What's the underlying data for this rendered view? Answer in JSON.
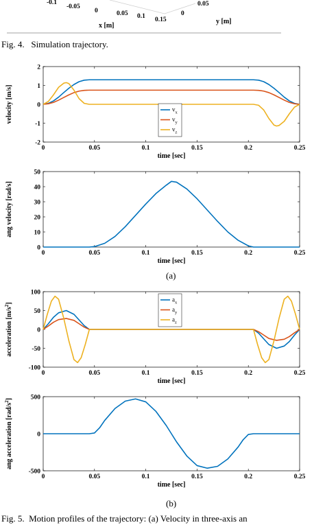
{
  "top_fragment": {
    "ticks_x": [
      "-0.1",
      "-0.05",
      "0",
      "0.05",
      "0.1",
      "0.15"
    ],
    "ticks_y": [
      "0",
      "0.05"
    ],
    "xlabel": "x [m]",
    "ylabel": "y [m]"
  },
  "fig4_caption": "Fig. 4.   Simulation trajectory.",
  "fig5_caption": "Fig. 5.  Motion profiles of the trajectory: (a) Velocity in three-axis an",
  "sublabels": {
    "a": "(a)",
    "b": "(b)"
  },
  "colors": {
    "blue": "#0072BD",
    "orange": "#D95319",
    "yellow": "#EDB120"
  },
  "chart_data": [
    {
      "type": "line",
      "xlabel": "time [sec]",
      "ylabel": "velocity [m/s]",
      "xlim": [
        0,
        0.25
      ],
      "ylim": [
        -2,
        2
      ],
      "xticks": [
        "0",
        "0.05",
        "0.1",
        "0.15",
        "0.2",
        "0.25"
      ],
      "yticks": [
        "2",
        "1",
        "0",
        "-1",
        "-2"
      ],
      "legend": "inside-bottom-center",
      "series": [
        {
          "name": "vx",
          "sym": "v",
          "sub": "x",
          "color": "#0072BD",
          "points": [
            [
              0,
              0
            ],
            [
              0.005,
              0.05
            ],
            [
              0.01,
              0.18
            ],
            [
              0.015,
              0.38
            ],
            [
              0.02,
              0.62
            ],
            [
              0.025,
              0.85
            ],
            [
              0.03,
              1.05
            ],
            [
              0.035,
              1.2
            ],
            [
              0.04,
              1.28
            ],
            [
              0.045,
              1.3
            ],
            [
              0.205,
              1.3
            ],
            [
              0.21,
              1.28
            ],
            [
              0.215,
              1.2
            ],
            [
              0.22,
              1.05
            ],
            [
              0.225,
              0.85
            ],
            [
              0.23,
              0.62
            ],
            [
              0.235,
              0.38
            ],
            [
              0.24,
              0.18
            ],
            [
              0.245,
              0.05
            ],
            [
              0.25,
              0
            ]
          ]
        },
        {
          "name": "vy",
          "sym": "v",
          "sub": "y",
          "color": "#D95319",
          "points": [
            [
              0,
              0
            ],
            [
              0.005,
              0.03
            ],
            [
              0.01,
              0.1
            ],
            [
              0.015,
              0.22
            ],
            [
              0.02,
              0.36
            ],
            [
              0.025,
              0.5
            ],
            [
              0.03,
              0.62
            ],
            [
              0.035,
              0.7
            ],
            [
              0.04,
              0.74
            ],
            [
              0.045,
              0.75
            ],
            [
              0.205,
              0.75
            ],
            [
              0.21,
              0.74
            ],
            [
              0.215,
              0.7
            ],
            [
              0.22,
              0.62
            ],
            [
              0.225,
              0.5
            ],
            [
              0.23,
              0.36
            ],
            [
              0.235,
              0.22
            ],
            [
              0.24,
              0.1
            ],
            [
              0.245,
              0.03
            ],
            [
              0.25,
              0
            ]
          ]
        },
        {
          "name": "vz",
          "sym": "v",
          "sub": "z",
          "color": "#EDB120",
          "points": [
            [
              0,
              0
            ],
            [
              0.005,
              0.15
            ],
            [
              0.01,
              0.5
            ],
            [
              0.015,
              0.9
            ],
            [
              0.02,
              1.12
            ],
            [
              0.0225,
              1.15
            ],
            [
              0.025,
              1.1
            ],
            [
              0.03,
              0.75
            ],
            [
              0.035,
              0.3
            ],
            [
              0.04,
              0.05
            ],
            [
              0.045,
              0
            ],
            [
              0.205,
              0
            ],
            [
              0.21,
              -0.05
            ],
            [
              0.215,
              -0.3
            ],
            [
              0.22,
              -0.75
            ],
            [
              0.225,
              -1.1
            ],
            [
              0.2275,
              -1.15
            ],
            [
              0.23,
              -1.12
            ],
            [
              0.235,
              -0.9
            ],
            [
              0.24,
              -0.5
            ],
            [
              0.245,
              -0.15
            ],
            [
              0.25,
              0
            ]
          ]
        }
      ]
    },
    {
      "type": "line",
      "xlabel": "time [sec]",
      "ylabel": "ang velocity [rad/s]",
      "xlim": [
        0,
        0.25
      ],
      "ylim": [
        0,
        50
      ],
      "xticks": [
        "0",
        "0.05",
        "0.1",
        "0.15",
        "0.2",
        "0.25"
      ],
      "yticks": [
        "50",
        "40",
        "30",
        "20",
        "10",
        "0"
      ],
      "series": [
        {
          "color": "#0072BD",
          "points": [
            [
              0,
              0
            ],
            [
              0.045,
              0
            ],
            [
              0.05,
              0.3
            ],
            [
              0.06,
              2.5
            ],
            [
              0.07,
              7
            ],
            [
              0.08,
              13.5
            ],
            [
              0.09,
              21
            ],
            [
              0.1,
              28.5
            ],
            [
              0.11,
              35.5
            ],
            [
              0.12,
              41
            ],
            [
              0.125,
              43.5
            ],
            [
              0.13,
              43
            ],
            [
              0.14,
              38.5
            ],
            [
              0.15,
              32
            ],
            [
              0.16,
              24.5
            ],
            [
              0.17,
              17
            ],
            [
              0.18,
              10
            ],
            [
              0.19,
              4.5
            ],
            [
              0.2,
              0.8
            ],
            [
              0.205,
              0
            ],
            [
              0.25,
              0
            ]
          ]
        }
      ]
    },
    {
      "type": "line",
      "xlabel": "time [sec]",
      "ylabel": "acceleration [m/s2]",
      "ylabel_main": "acceleration [m/s",
      "ylabel_sup": "2",
      "ylabel_end": "]",
      "xlim": [
        0,
        0.25
      ],
      "ylim": [
        -100,
        100
      ],
      "xticks": [
        "0",
        "0.05",
        "0.1",
        "0.15",
        "0.2",
        "0.25"
      ],
      "yticks": [
        "100",
        "50",
        "0",
        "-50",
        "-100"
      ],
      "legend": "inside-top-center",
      "series": [
        {
          "name": "ax",
          "sym": "a",
          "sub": "x",
          "color": "#0072BD",
          "points": [
            [
              0,
              0
            ],
            [
              0.005,
              15
            ],
            [
              0.01,
              32
            ],
            [
              0.015,
              44
            ],
            [
              0.0225,
              50
            ],
            [
              0.03,
              40
            ],
            [
              0.035,
              25
            ],
            [
              0.04,
              10
            ],
            [
              0.045,
              0
            ],
            [
              0.205,
              0
            ],
            [
              0.21,
              -10
            ],
            [
              0.215,
              -25
            ],
            [
              0.22,
              -40
            ],
            [
              0.2275,
              -50
            ],
            [
              0.235,
              -44
            ],
            [
              0.24,
              -32
            ],
            [
              0.245,
              -15
            ],
            [
              0.25,
              0
            ]
          ]
        },
        {
          "name": "ay",
          "sym": "a",
          "sub": "y",
          "color": "#D95319",
          "points": [
            [
              0,
              0
            ],
            [
              0.005,
              9
            ],
            [
              0.01,
              19
            ],
            [
              0.015,
              26
            ],
            [
              0.0225,
              29
            ],
            [
              0.03,
              24
            ],
            [
              0.035,
              15
            ],
            [
              0.04,
              6
            ],
            [
              0.045,
              0
            ],
            [
              0.205,
              0
            ],
            [
              0.21,
              -6
            ],
            [
              0.215,
              -15
            ],
            [
              0.22,
              -24
            ],
            [
              0.2275,
              -29
            ],
            [
              0.235,
              -26
            ],
            [
              0.24,
              -19
            ],
            [
              0.245,
              -9
            ],
            [
              0.25,
              0
            ]
          ]
        },
        {
          "name": "az",
          "sym": "a",
          "sub": "z",
          "color": "#EDB120",
          "points": [
            [
              0,
              0
            ],
            [
              0.004,
              40
            ],
            [
              0.008,
              75
            ],
            [
              0.0115,
              88
            ],
            [
              0.015,
              80
            ],
            [
              0.02,
              30
            ],
            [
              0.0225,
              0
            ],
            [
              0.025,
              -30
            ],
            [
              0.03,
              -80
            ],
            [
              0.0335,
              -88
            ],
            [
              0.037,
              -75
            ],
            [
              0.041,
              -40
            ],
            [
              0.045,
              0
            ],
            [
              0.205,
              0
            ],
            [
              0.209,
              -40
            ],
            [
              0.213,
              -75
            ],
            [
              0.2165,
              -88
            ],
            [
              0.22,
              -80
            ],
            [
              0.225,
              -30
            ],
            [
              0.2275,
              0
            ],
            [
              0.23,
              30
            ],
            [
              0.235,
              80
            ],
            [
              0.2385,
              88
            ],
            [
              0.242,
              75
            ],
            [
              0.246,
              40
            ],
            [
              0.25,
              0
            ]
          ]
        }
      ]
    },
    {
      "type": "line",
      "xlabel": "time [sec]",
      "ylabel": "ang acceleration [rad/s2]",
      "ylabel_main": "ang acceleration [rad/s",
      "ylabel_sup": "2",
      "ylabel_end": "]",
      "xlim": [
        0,
        0.25
      ],
      "ylim": [
        -500,
        500
      ],
      "xticks": [
        "0",
        "0.05",
        "0.1",
        "0.15",
        "0.2",
        "0.25"
      ],
      "yticks": [
        "500",
        "0",
        "-500"
      ],
      "series": [
        {
          "color": "#0072BD",
          "points": [
            [
              0,
              0
            ],
            [
              0.045,
              0
            ],
            [
              0.05,
              10
            ],
            [
              0.055,
              80
            ],
            [
              0.06,
              180
            ],
            [
              0.07,
              340
            ],
            [
              0.08,
              440
            ],
            [
              0.09,
              470
            ],
            [
              0.1,
              430
            ],
            [
              0.11,
              300
            ],
            [
              0.12,
              110
            ],
            [
              0.125,
              0
            ],
            [
              0.13,
              -110
            ],
            [
              0.14,
              -300
            ],
            [
              0.15,
              -430
            ],
            [
              0.16,
              -465
            ],
            [
              0.17,
              -440
            ],
            [
              0.18,
              -340
            ],
            [
              0.19,
              -180
            ],
            [
              0.195,
              -80
            ],
            [
              0.2,
              -10
            ],
            [
              0.205,
              0
            ],
            [
              0.25,
              0
            ]
          ]
        }
      ]
    }
  ]
}
